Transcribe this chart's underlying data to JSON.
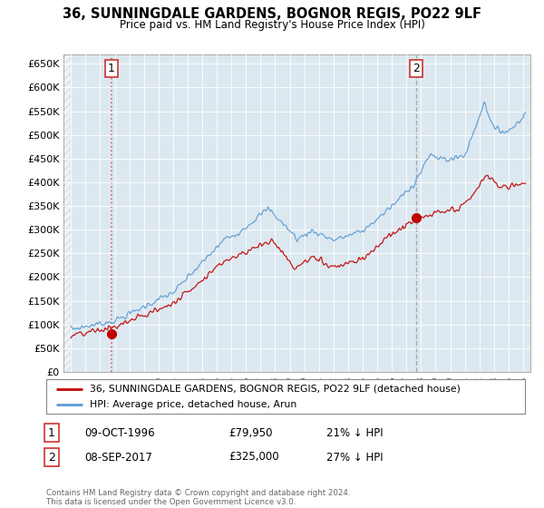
{
  "title": "36, SUNNINGDALE GARDENS, BOGNOR REGIS, PO22 9LF",
  "subtitle": "Price paid vs. HM Land Registry's House Price Index (HPI)",
  "legend_line1": "36, SUNNINGDALE GARDENS, BOGNOR REGIS, PO22 9LF (detached house)",
  "legend_line2": "HPI: Average price, detached house, Arun",
  "footnote": "Contains HM Land Registry data © Crown copyright and database right 2024.\nThis data is licensed under the Open Government Licence v3.0.",
  "sale1_label": "1",
  "sale1_date": "09-OCT-1996",
  "sale1_price": "£79,950",
  "sale1_note": "21% ↓ HPI",
  "sale2_label": "2",
  "sale2_date": "08-SEP-2017",
  "sale2_price": "£325,000",
  "sale2_note": "27% ↓ HPI",
  "sale1_year": 1996.77,
  "sale1_value": 79950,
  "sale2_year": 2017.68,
  "sale2_value": 325000,
  "hpi_color": "#5b9bd5",
  "price_color": "#c00000",
  "dashed_color": "#e06060",
  "sale2_vline_color": "#aaaaaa",
  "plot_bg_color": "#dce8f0",
  "background_color": "#ffffff",
  "grid_color": "#ffffff",
  "ylim": [
    0,
    670000
  ],
  "xlim_start": 1993.5,
  "xlim_end": 2025.5,
  "yticks": [
    0,
    50000,
    100000,
    150000,
    200000,
    250000,
    300000,
    350000,
    400000,
    450000,
    500000,
    550000,
    600000,
    650000
  ],
  "xticks": [
    1994,
    1995,
    1996,
    1997,
    1998,
    1999,
    2000,
    2001,
    2002,
    2003,
    2004,
    2005,
    2006,
    2007,
    2008,
    2009,
    2010,
    2011,
    2012,
    2013,
    2014,
    2015,
    2016,
    2017,
    2018,
    2019,
    2020,
    2021,
    2022,
    2023,
    2024,
    2025
  ]
}
